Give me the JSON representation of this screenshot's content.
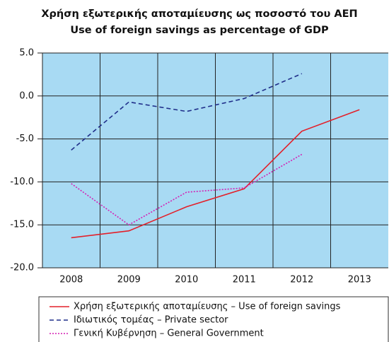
{
  "chart_data": {
    "type": "line",
    "title": [
      "Χρήση εξωτερικής αποταμίευσης ως ποσοστό του ΑΕΠ",
      "Use of foreign savings as percentage of GDP"
    ],
    "categories": [
      "2008",
      "2009",
      "2010",
      "2011",
      "2012",
      "2013"
    ],
    "series": [
      {
        "name": "Χρήση εξωτερικής αποταμίευσης – Use of foreign savings",
        "color": "#e3202a",
        "style": "solid",
        "values": [
          -16.5,
          -15.7,
          -12.9,
          -10.8,
          -4.1,
          -1.6
        ]
      },
      {
        "name": "Ιδιωτικός τομέας – Private sector",
        "color": "#1f2e8a",
        "style": "dashed",
        "values": [
          -6.3,
          -0.7,
          -1.8,
          -0.3,
          2.6,
          null
        ]
      },
      {
        "name": "Γενική Κυβέρνηση – General Government",
        "color": "#d41fb4",
        "style": "dotted",
        "values": [
          -10.2,
          -15.0,
          -11.2,
          -10.7,
          -6.8,
          null
        ]
      }
    ],
    "ylim": [
      -20,
      5
    ],
    "yticks": [
      {
        "value": 5,
        "label": "5.0"
      },
      {
        "value": 0,
        "label": "0.0"
      },
      {
        "value": -5,
        "label": "-5.0"
      },
      {
        "value": -10,
        "label": "-10.0"
      },
      {
        "value": -15,
        "label": "-15.0"
      },
      {
        "value": -20,
        "label": "-20.0"
      }
    ],
    "grid": true,
    "background": "#a8daf3"
  }
}
